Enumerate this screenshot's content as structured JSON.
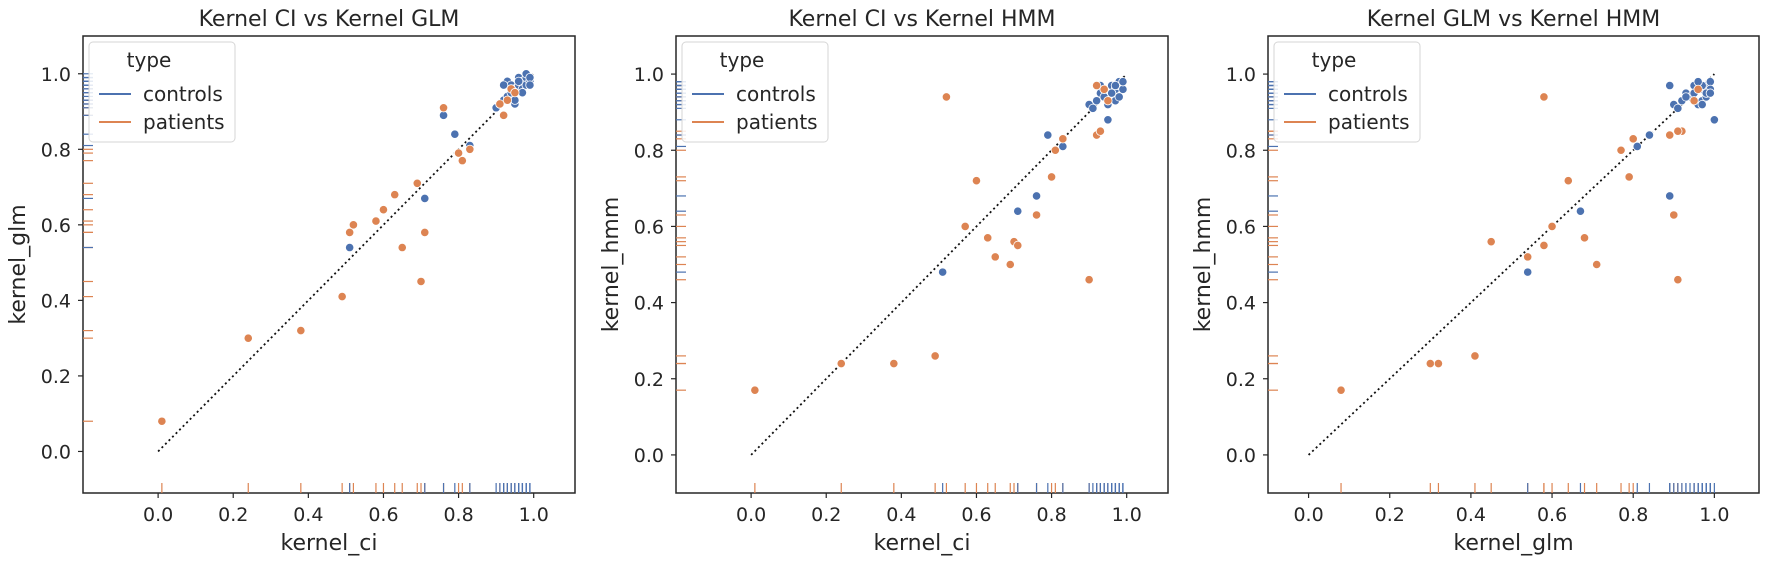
{
  "chart_data": [
    {
      "type": "scatter",
      "title": "Kernel CI vs Kernel GLM",
      "xlabel": "kernel_ci",
      "ylabel": "kernel_glm",
      "xlim": [
        -0.2,
        1.11
      ],
      "ylim": [
        -0.11,
        1.1
      ],
      "xticks": [
        0.0,
        0.2,
        0.4,
        0.6,
        0.8,
        1.0
      ],
      "yticks": [
        0.0,
        0.2,
        0.4,
        0.6,
        0.8,
        1.0
      ],
      "grid": false,
      "legend": {
        "title": "type",
        "position": "top-left",
        "entries": [
          "controls",
          "patients"
        ]
      },
      "reference_line": "y = x (dotted)",
      "rug": true,
      "series": [
        {
          "name": "controls",
          "color": "#4c72b0",
          "x": [
            0.51,
            0.71,
            0.76,
            0.79,
            0.83,
            0.9,
            0.91,
            0.92,
            0.93,
            0.93,
            0.94,
            0.94,
            0.95,
            0.95,
            0.96,
            0.96,
            0.97,
            0.97,
            0.98,
            0.98,
            0.98,
            0.99,
            0.99,
            0.95,
            0.92,
            0.97,
            0.96,
            0.99
          ],
          "y": [
            0.54,
            0.67,
            0.89,
            0.84,
            0.81,
            0.91,
            0.92,
            0.93,
            0.98,
            0.94,
            0.95,
            0.97,
            0.96,
            0.92,
            0.97,
            0.99,
            0.98,
            0.96,
            0.99,
            0.97,
            1.0,
            0.98,
            0.99,
            0.93,
            0.97,
            0.95,
            0.98,
            0.97
          ]
        },
        {
          "name": "patients",
          "color": "#dd8452",
          "x": [
            0.01,
            0.24,
            0.38,
            0.49,
            0.51,
            0.52,
            0.58,
            0.6,
            0.63,
            0.65,
            0.69,
            0.7,
            0.71,
            0.76,
            0.8,
            0.81,
            0.83,
            0.91,
            0.92,
            0.93,
            0.94,
            0.95
          ],
          "y": [
            0.08,
            0.3,
            0.32,
            0.41,
            0.58,
            0.6,
            0.61,
            0.64,
            0.68,
            0.54,
            0.71,
            0.45,
            0.58,
            0.91,
            0.79,
            0.77,
            0.8,
            0.92,
            0.89,
            0.93,
            0.96,
            0.95
          ]
        }
      ]
    },
    {
      "type": "scatter",
      "title": "Kernel CI vs Kernel HMM",
      "xlabel": "kernel_ci",
      "ylabel": "kernel_hmm",
      "xlim": [
        -0.2,
        1.11
      ],
      "ylim": [
        -0.1,
        1.1
      ],
      "xticks": [
        0.0,
        0.2,
        0.4,
        0.6,
        0.8,
        1.0
      ],
      "yticks": [
        0.0,
        0.2,
        0.4,
        0.6,
        0.8,
        1.0
      ],
      "grid": false,
      "legend": {
        "title": "type",
        "position": "top-left",
        "entries": [
          "controls",
          "patients"
        ]
      },
      "reference_line": "y = x (dotted)",
      "rug": true,
      "series": [
        {
          "name": "controls",
          "color": "#4c72b0",
          "x": [
            0.51,
            0.71,
            0.76,
            0.79,
            0.83,
            0.9,
            0.91,
            0.92,
            0.93,
            0.93,
            0.94,
            0.94,
            0.95,
            0.95,
            0.96,
            0.96,
            0.97,
            0.97,
            0.98,
            0.98,
            0.98,
            0.99,
            0.99,
            0.95,
            0.92,
            0.97,
            0.96,
            0.99
          ],
          "y": [
            0.48,
            0.64,
            0.68,
            0.84,
            0.81,
            0.92,
            0.91,
            0.93,
            0.97,
            0.95,
            0.94,
            0.96,
            0.92,
            0.88,
            0.95,
            0.97,
            0.93,
            0.96,
            0.94,
            0.97,
            0.98,
            0.96,
            0.98,
            0.92,
            0.84,
            0.97,
            0.95,
            0.98
          ]
        },
        {
          "name": "patients",
          "color": "#dd8452",
          "x": [
            0.01,
            0.24,
            0.38,
            0.49,
            0.52,
            0.57,
            0.6,
            0.63,
            0.65,
            0.69,
            0.7,
            0.71,
            0.76,
            0.8,
            0.81,
            0.83,
            0.9,
            0.92,
            0.93,
            0.94,
            0.95,
            0.92
          ],
          "y": [
            0.17,
            0.24,
            0.24,
            0.26,
            0.94,
            0.6,
            0.72,
            0.57,
            0.52,
            0.5,
            0.56,
            0.55,
            0.63,
            0.73,
            0.8,
            0.83,
            0.46,
            0.84,
            0.85,
            0.96,
            0.93,
            0.97
          ]
        }
      ]
    },
    {
      "type": "scatter",
      "title": "Kernel GLM vs Kernel HMM",
      "xlabel": "kernel_glm",
      "ylabel": "kernel_hmm",
      "xlim": [
        -0.1,
        1.11
      ],
      "ylim": [
        -0.1,
        1.1
      ],
      "xticks": [
        0.0,
        0.2,
        0.4,
        0.6,
        0.8,
        1.0
      ],
      "yticks": [
        0.0,
        0.2,
        0.4,
        0.6,
        0.8,
        1.0
      ],
      "grid": false,
      "legend": {
        "title": "type",
        "position": "top-left",
        "entries": [
          "controls",
          "patients"
        ]
      },
      "reference_line": "y = x (dotted)",
      "rug": true,
      "series": [
        {
          "name": "controls",
          "color": "#4c72b0",
          "x": [
            0.54,
            0.67,
            0.84,
            0.81,
            0.89,
            0.9,
            0.91,
            0.92,
            0.93,
            0.94,
            0.95,
            0.96,
            0.96,
            0.97,
            0.97,
            0.98,
            0.98,
            0.99,
            0.99,
            1.0,
            0.95,
            0.97,
            0.98,
            0.96,
            0.93,
            0.97,
            0.89,
            0.99
          ],
          "y": [
            0.48,
            0.64,
            0.84,
            0.81,
            0.68,
            0.92,
            0.91,
            0.93,
            0.95,
            0.94,
            0.97,
            0.96,
            0.92,
            0.93,
            0.96,
            0.94,
            0.97,
            0.98,
            0.96,
            0.88,
            0.95,
            0.97,
            0.95,
            0.98,
            0.94,
            0.92,
            0.97,
            0.95
          ]
        },
        {
          "name": "patients",
          "color": "#dd8452",
          "x": [
            0.08,
            0.3,
            0.32,
            0.41,
            0.45,
            0.54,
            0.58,
            0.6,
            0.64,
            0.68,
            0.71,
            0.58,
            0.77,
            0.79,
            0.8,
            0.89,
            0.9,
            0.91,
            0.92,
            0.95,
            0.96,
            0.91
          ],
          "y": [
            0.17,
            0.24,
            0.24,
            0.26,
            0.56,
            0.52,
            0.55,
            0.6,
            0.72,
            0.57,
            0.5,
            0.94,
            0.8,
            0.73,
            0.83,
            0.84,
            0.63,
            0.46,
            0.85,
            0.93,
            0.96,
            0.85
          ]
        }
      ]
    }
  ]
}
